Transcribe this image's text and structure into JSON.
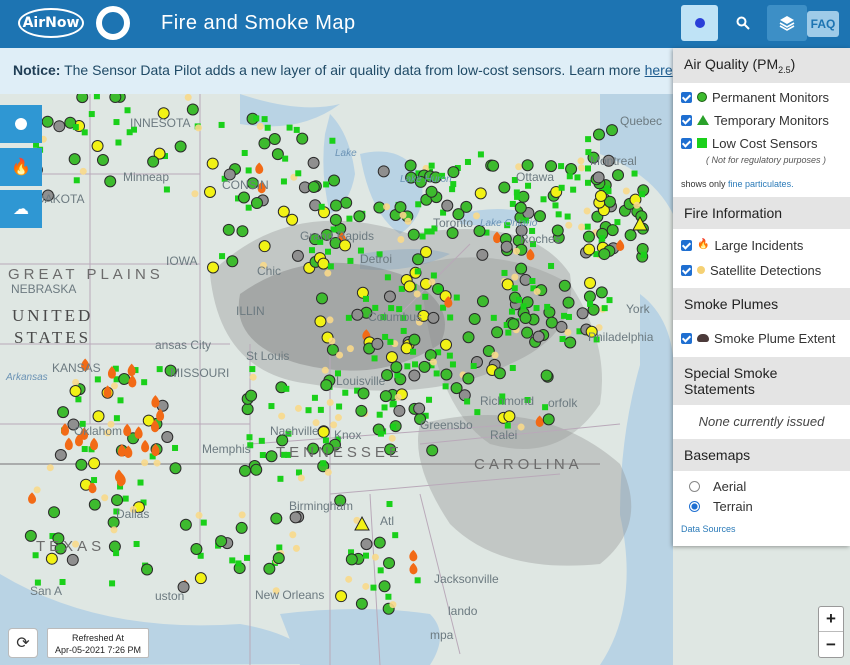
{
  "header": {
    "logo_text": "AirNow",
    "title": "Fire and Smoke Map",
    "faq_label": "FAQ",
    "locate_icon": "location-dot-icon",
    "search_icon": "search-icon",
    "layers_icon": "layers-icon"
  },
  "notice": {
    "bold": "Notice:",
    "text": " The Sensor Data Pilot adds a new layer of air quality data from low-cost sensors. Learn more ",
    "link": "here",
    "tail": "."
  },
  "panel": {
    "air_quality": {
      "heading": "Air Quality (PM",
      "heading_sub": "2.5",
      "heading_tail": ")",
      "items": [
        {
          "label": "Permanent Monitors",
          "symbol": "circle"
        },
        {
          "label": "Temporary Monitors",
          "symbol": "triangle"
        },
        {
          "label": "Low Cost Sensors",
          "symbol": "square"
        }
      ],
      "note": "( Not for regulatory purposes )",
      "shows_prefix": "shows only ",
      "shows_link": "fine particulates."
    },
    "fire": {
      "heading": "Fire Information",
      "items": [
        {
          "label": "Large Incidents",
          "symbol": "fire-icon"
        },
        {
          "label": "Satellite Detections",
          "symbol": "dot"
        }
      ]
    },
    "smoke": {
      "heading": "Smoke Plumes",
      "items": [
        {
          "label": "Smoke Plume Extent",
          "symbol": "cloud-icon"
        }
      ]
    },
    "statements": {
      "heading": "Special Smoke Statements",
      "text": "None currently issued"
    },
    "basemaps": {
      "heading": "Basemaps",
      "options": [
        {
          "label": "Aerial",
          "selected": false
        },
        {
          "label": "Terrain",
          "selected": true
        }
      ],
      "sources": "Data Sources"
    }
  },
  "map": {
    "labels": {
      "innesota": "INNESOTA",
      "minneapolis": "Minneap",
      "dakota": "DAKOTA",
      "great_plains": "GREAT  PLAINS",
      "nebraska": "NEBRASKA",
      "united": "UNITED",
      "states": "STATES",
      "kansas": "KANSAS",
      "arkansas": "Arkansas",
      "oklahoma": "Oklahom",
      "dallas": "Dallas",
      "texas": "TEXAS",
      "san_antonio": "San A",
      "houston": "uston",
      "new_orleans": "New Orleans",
      "memphis": "Memphis",
      "nashville": "Nashville",
      "birmingham": "Birmingham",
      "missouri": "MISSOURI",
      "stlouis": "St Louis",
      "kansas_city": "ansas City",
      "iowa": "IOWA",
      "chicago": "Chic",
      "grand_rapids": "Grand Rapids",
      "toronto": "Toronto",
      "ottawa": "Ottawa",
      "montreal": "Montreal",
      "quebec": "Quebec",
      "rochester": "Roches",
      "philadelphia": "Philadelphia",
      "york": "York",
      "richmond": "Richmond",
      "norfolk": "orfolk",
      "greensboro": "Greensbo",
      "raleigh": "Ralei",
      "carolina": "CAROLINA",
      "tennessee": "TENNESSEE",
      "jacksonville": "Jacksonville",
      "orlando": "lando",
      "tampa": "mpa",
      "lake_michigan": "",
      "lake_huron": "Lake Huron",
      "lake_ontario": "Lake Ontario",
      "lake_superior": "Lake",
      "columbus": "Columbus",
      "atlanta": "Atl",
      "knoxville": "Knox",
      "louisville": "Louisville",
      "detroit": "Detroi",
      "wisconsin": "CONSIN",
      "illinois": "ILLIN"
    }
  },
  "tools": {
    "aq_icon": "circle-icon",
    "fire_icon": "fire-icon",
    "smoke_icon": "cloud-icon"
  },
  "footer": {
    "refresh_icon": "refresh-icon",
    "refreshed_label": "Refreshed At",
    "refreshed_time": "Apr-05-2021 7:26 PM",
    "zoom_in": "+",
    "zoom_out": "−"
  },
  "colors": {
    "header": "#1d74b2",
    "good": "#3dbb2e",
    "moderate": "#f2f215",
    "sensor": "#1ad01a",
    "fire": "#f26a16",
    "smoke": "#6e6e6e"
  }
}
